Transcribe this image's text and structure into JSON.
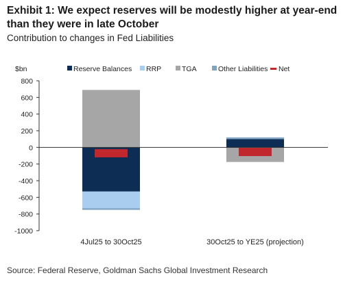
{
  "title": "Exhibit 1: We expect reserves will be modestly higher at year-end than they were in late October",
  "subtitle": "Contribution to changes in Fed Liabilities",
  "source": "Source: Federal Reserve, Goldman Sachs Global Investment Research",
  "chart_data": {
    "type": "bar",
    "stacked": true,
    "ylabel": "$bn",
    "ylim": [
      -1000,
      800
    ],
    "yticks": [
      800,
      600,
      400,
      200,
      0,
      -200,
      -400,
      -600,
      -800,
      -1000
    ],
    "categories": [
      "4Jul25 to 30Oct25",
      "30Oct25 to YE25 (projection)"
    ],
    "series": [
      {
        "name": "Reserve Balances",
        "color": "#0d2d55",
        "values": [
          -530,
          100
        ]
      },
      {
        "name": "RRP",
        "color": "#a9cdee",
        "values": [
          -200,
          0
        ]
      },
      {
        "name": "TGA",
        "color": "#a6a6a6",
        "values": [
          690,
          -175
        ]
      },
      {
        "name": "Other Liabilities",
        "color": "#7fa4c4",
        "values": [
          -20,
          20
        ]
      },
      {
        "name": "Net",
        "color": "#c0282d",
        "marker": "dash",
        "values": [
          -70,
          -55
        ]
      }
    ],
    "legend_position": "top",
    "grid": false
  }
}
